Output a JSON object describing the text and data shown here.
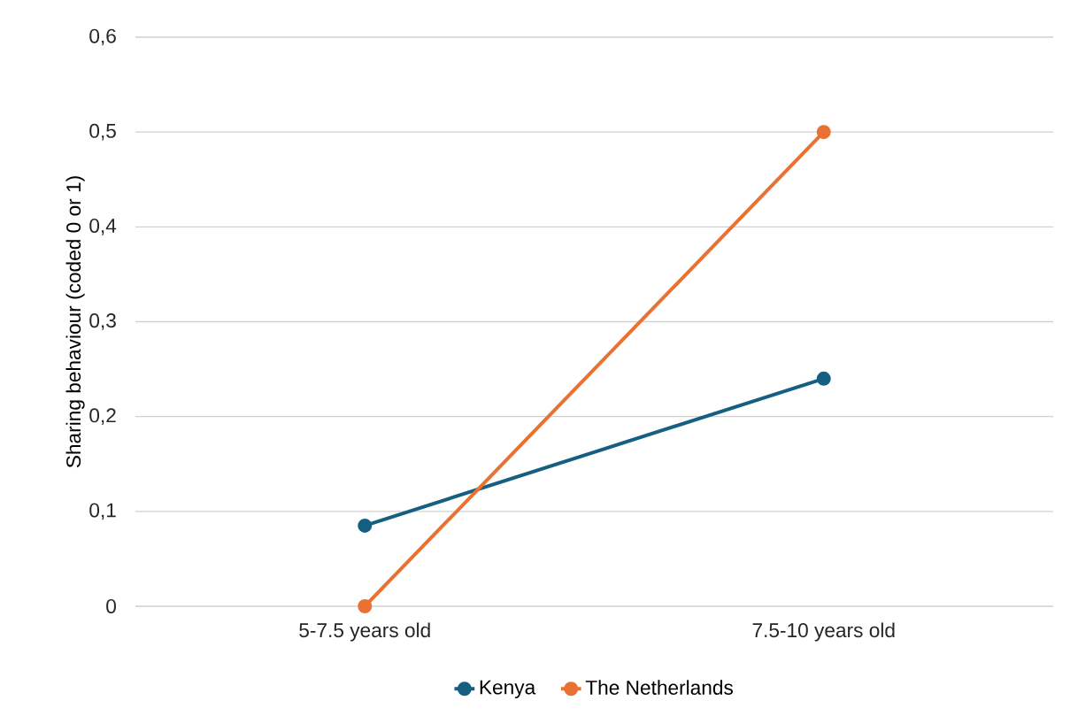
{
  "chart_data": {
    "type": "line",
    "ylabel": "Sharing behaviour  (coded 0 or 1)",
    "categories": [
      "5-7.5 years old",
      "7.5-10 years old"
    ],
    "series": [
      {
        "name": "Kenya",
        "color": "#156082",
        "values": [
          0.085,
          0.24
        ]
      },
      {
        "name": "The Netherlands",
        "color": "#e97132",
        "values": [
          0,
          0.5
        ]
      }
    ],
    "ylim": [
      0,
      0.6
    ],
    "yticks": [
      0,
      {
        "value": 0.1,
        "label": "0,1"
      },
      {
        "value": 0.2,
        "label": "0,2"
      },
      {
        "value": 0.3,
        "label": "0,3"
      },
      {
        "value": 0.4,
        "label": "0,4"
      },
      {
        "value": 0.5,
        "label": "0,5"
      },
      {
        "value": 0.6,
        "label": "0,6"
      }
    ],
    "grid": "y",
    "legend": "bottom",
    "marker": "circle",
    "line_style": "solid"
  }
}
